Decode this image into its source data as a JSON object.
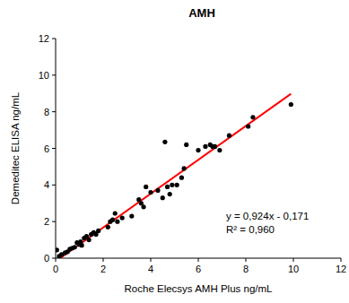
{
  "chart_data": {
    "type": "scatter",
    "title": "AMH",
    "x_label": "Roche Elecsys AMH Plus ng/mL",
    "y_label": "Demeditec ELISA ng/mL",
    "annotations": [
      "y = 0,924x - 0,171",
      "R² = 0,960"
    ],
    "xlim": [
      0,
      12
    ],
    "ylim": [
      0,
      12
    ],
    "xticks": [
      0,
      2,
      4,
      6,
      8,
      10,
      12
    ],
    "yticks": [
      0,
      2,
      4,
      6,
      8,
      10,
      12
    ],
    "grid": false,
    "series": [
      {
        "type": "scatter",
        "color": "#000000",
        "marker": "circle",
        "x": [
          0.05,
          0.15,
          0.25,
          0.4,
          0.5,
          0.6,
          0.7,
          0.8,
          0.9,
          1.0,
          1.05,
          1.1,
          1.2,
          1.3,
          1.4,
          1.5,
          1.6,
          1.7,
          1.8,
          2.2,
          2.3,
          2.4,
          2.5,
          2.6,
          2.8,
          3.2,
          3.5,
          3.6,
          3.7,
          3.8,
          4.0,
          4.3,
          4.5,
          4.6,
          4.7,
          4.8,
          4.9,
          5.1,
          5.3,
          5.4,
          5.5,
          6.0,
          6.3,
          6.5,
          6.6,
          6.7,
          6.9,
          7.3,
          8.1,
          8.3,
          9.9
        ],
        "values": [
          0.45,
          0.1,
          0.2,
          0.3,
          0.35,
          0.5,
          0.55,
          0.6,
          0.85,
          0.75,
          0.9,
          0.7,
          1.1,
          1.2,
          1.0,
          1.3,
          1.4,
          1.3,
          1.5,
          1.7,
          2.0,
          2.1,
          2.45,
          2.0,
          2.2,
          2.3,
          3.2,
          3.0,
          2.8,
          3.9,
          3.6,
          3.7,
          3.3,
          6.35,
          3.9,
          3.5,
          4.0,
          4.0,
          4.4,
          4.9,
          6.2,
          5.9,
          6.1,
          6.2,
          6.1,
          6.1,
          5.9,
          6.7,
          7.2,
          7.7,
          8.4
        ]
      },
      {
        "type": "line",
        "color": "#ff0000",
        "line_style": "solid",
        "x": [
          0.19,
          9.9
        ],
        "values": [
          0,
          8.98
        ]
      }
    ]
  }
}
